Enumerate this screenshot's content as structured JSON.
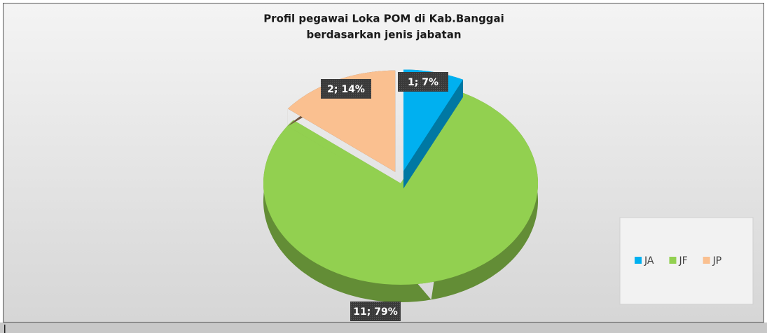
{
  "chart_data": {
    "type": "pie",
    "title": [
      "Profil pegawai Loka POM di Kab.Banggai",
      "berdasarkan jenis jabatan"
    ],
    "categories": [
      "JA",
      "JF",
      "JP"
    ],
    "values": [
      1,
      11,
      2
    ],
    "value_labels": [
      "1; 7%",
      "11; 79%",
      "2; 14%"
    ],
    "colors": [
      "#00b0f0",
      "#92d050",
      "#fac090"
    ],
    "legend": "right"
  }
}
